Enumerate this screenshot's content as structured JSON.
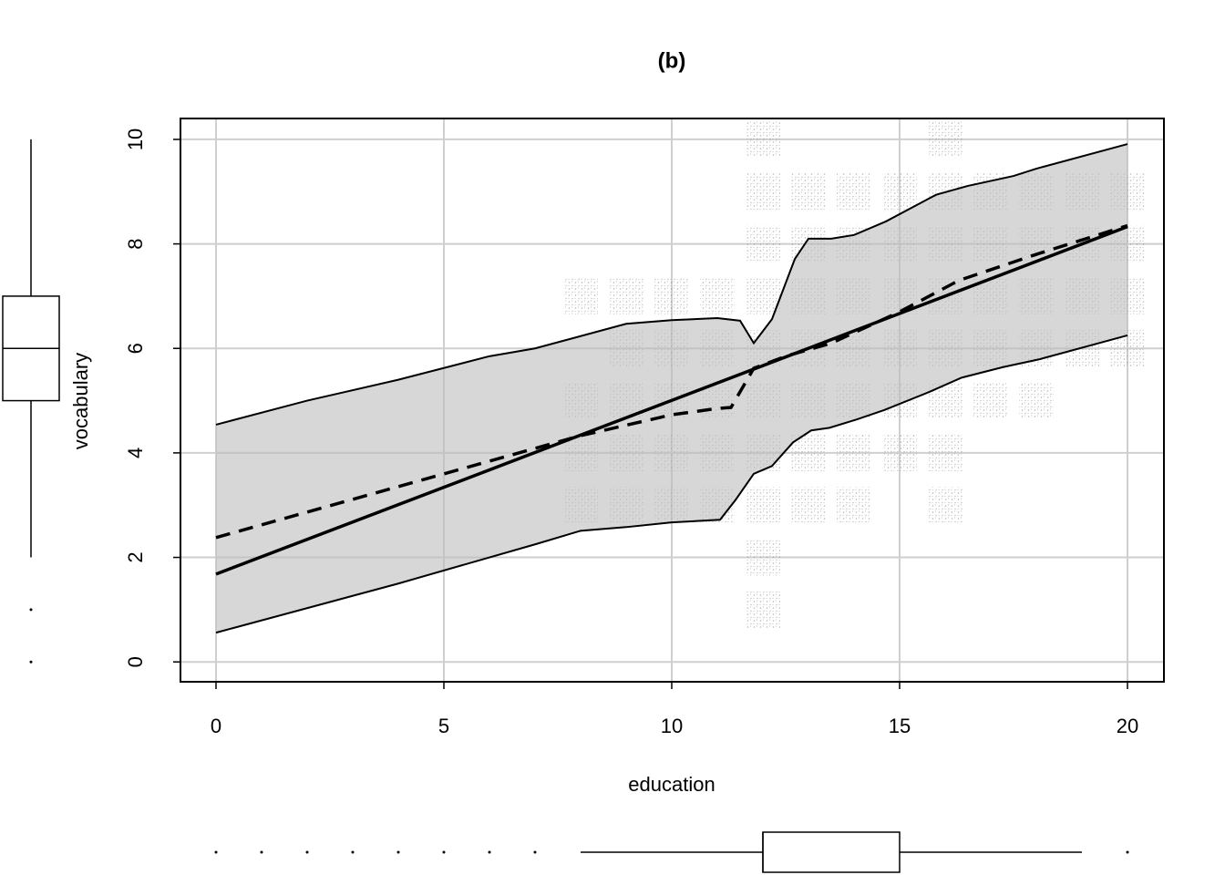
{
  "chart_data": {
    "type": "scatter",
    "title": "(b)",
    "x_label": "education",
    "y_label": "vocabulary",
    "xlim": [
      -0.78,
      20.8
    ],
    "ylim": [
      -0.38,
      10.4
    ],
    "xticks": [
      0,
      5,
      10,
      15,
      20
    ],
    "yticks": [
      0,
      2,
      4,
      6,
      8,
      10
    ],
    "grid": true,
    "observations": {
      "color": "#8c8c8c",
      "x": [
        8,
        8,
        8,
        8,
        9,
        9,
        9,
        9,
        9,
        10,
        10,
        10,
        10,
        10,
        11,
        11,
        11,
        11,
        11,
        12,
        12,
        12,
        12,
        12,
        12,
        12,
        12,
        12,
        12,
        13,
        13,
        13,
        13,
        13,
        13,
        13,
        14,
        14,
        14,
        14,
        14,
        14,
        14,
        15,
        15,
        15,
        15,
        15,
        15,
        16,
        16,
        16,
        16,
        16,
        16,
        16,
        16,
        17,
        17,
        17,
        17,
        17,
        18,
        18,
        18,
        18,
        18,
        19,
        19,
        19,
        19,
        20,
        20,
        20,
        20
      ],
      "y": [
        3,
        4,
        5,
        7,
        3,
        4,
        5,
        6,
        7,
        3,
        4,
        5,
        6,
        7,
        3,
        4,
        5,
        6,
        7,
        1,
        2,
        3,
        4,
        5,
        6,
        7,
        8,
        9,
        10,
        3,
        4,
        5,
        6,
        7,
        8,
        9,
        3,
        4,
        5,
        6,
        7,
        8,
        9,
        4,
        5,
        6,
        7,
        8,
        9,
        3,
        4,
        5,
        6,
        7,
        8,
        9,
        10,
        5,
        6,
        7,
        8,
        9,
        5,
        6,
        7,
        8,
        9,
        6,
        7,
        8,
        9,
        6,
        7,
        8,
        9
      ]
    },
    "band_upper": {
      "x": [
        0,
        2,
        4,
        6,
        7,
        9,
        10,
        11,
        11.5,
        11.8,
        12.2,
        12.7,
        13,
        13.5,
        14,
        14.7,
        15.8,
        16.5,
        17.5,
        18,
        20
      ],
      "y": [
        4.54,
        5.0,
        5.4,
        5.85,
        6.0,
        6.47,
        6.54,
        6.58,
        6.53,
        6.1,
        6.56,
        7.71,
        8.1,
        8.1,
        8.17,
        8.43,
        8.94,
        9.11,
        9.3,
        9.44,
        9.91
      ]
    },
    "band_lower": {
      "x": [
        0,
        4,
        7,
        8,
        9,
        10,
        11.06,
        11.4,
        11.8,
        12.2,
        12.66,
        13.06,
        13.46,
        14.06,
        14.66,
        15.66,
        16.36,
        17.26,
        18.06,
        20
      ],
      "y": [
        0.56,
        1.5,
        2.25,
        2.51,
        2.58,
        2.67,
        2.72,
        3.1,
        3.6,
        3.75,
        4.2,
        4.43,
        4.48,
        4.64,
        4.82,
        5.17,
        5.44,
        5.64,
        5.79,
        6.25
      ]
    },
    "regression": {
      "x": [
        0,
        20
      ],
      "y": [
        1.68,
        8.33
      ]
    },
    "smooth": {
      "x": [
        0,
        8,
        10,
        11,
        11.3,
        11.8,
        12.5,
        13.5,
        14,
        15,
        16.3,
        18,
        20
      ],
      "y": [
        2.38,
        4.33,
        4.73,
        4.85,
        4.87,
        5.62,
        5.85,
        6.1,
        6.3,
        6.7,
        7.3,
        7.8,
        8.35
      ]
    },
    "x_boxplot": {
      "min": 8,
      "q1": 12,
      "median": 12,
      "q3": 15,
      "max": 19,
      "outliers": [
        0,
        1,
        2,
        3,
        4,
        5,
        6,
        7,
        20
      ]
    },
    "y_boxplot": {
      "min": 2,
      "q1": 5,
      "median": 6,
      "q3": 7,
      "max": 10,
      "outliers": [
        0,
        1
      ]
    }
  }
}
